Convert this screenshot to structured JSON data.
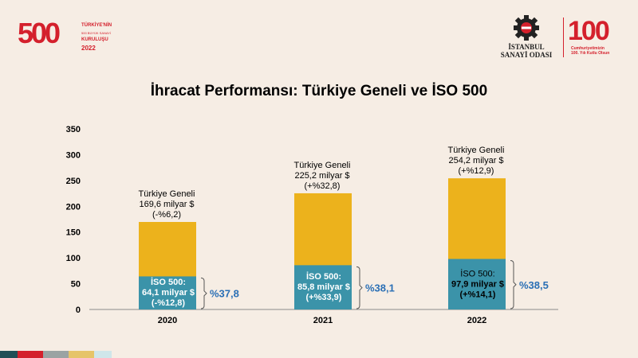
{
  "header": {
    "left_logo": {
      "number": "500",
      "line1": "TÜRKİYE'NİN",
      "line2": "500 BÜYÜK SANAYİ",
      "line3": "KURULUŞU",
      "year": "2022"
    },
    "right_logo": {
      "iso_line1": "İSTANBUL",
      "iso_line2": "SANAYİ ODASI",
      "hundred": "100",
      "cum_line1": "Cumhuriyetimizin",
      "cum_line2": "100. Yılı Kutlu Olsun"
    }
  },
  "colors": {
    "total": "#ecb21c",
    "iso": "#3b93a9",
    "share_text": "#2a6fb5",
    "accent_red": "#d4202c"
  },
  "footer_colors": [
    "#1f4e56",
    "#d4202c",
    "#9aa3a3",
    "#e6c469",
    "#cfe6ea"
  ],
  "chart_data": {
    "type": "bar",
    "title": "İhracat Performansı: Türkiye Geneli ve İSO 500",
    "categories": [
      "2020",
      "2021",
      "2022"
    ],
    "ylim": [
      0,
      350
    ],
    "yticks": [
      0,
      50,
      100,
      150,
      200,
      250,
      300,
      350
    ],
    "series": [
      {
        "name": "Türkiye Geneli",
        "values": [
          169.6,
          225.2,
          254.2
        ]
      },
      {
        "name": "İSO 500",
        "values": [
          64.1,
          85.8,
          97.9
        ]
      }
    ],
    "total_labels": [
      {
        "name": "Türkiye Geneli",
        "value": "169,6 milyar $",
        "change": "(-%6,2)"
      },
      {
        "name": "Türkiye Geneli",
        "value": "225,2 milyar $",
        "change": "(+%32,8)"
      },
      {
        "name": "Türkiye Geneli",
        "value": "254,2 milyar $",
        "change": "(+%12,9)"
      }
    ],
    "iso_labels": [
      {
        "name": "İSO 500:",
        "value": "64,1 milyar $",
        "change": "(-%12,8)"
      },
      {
        "name": "İSO 500:",
        "value": "85,8 milyar $",
        "change": "(+%33,9)"
      },
      {
        "name": "İSO 500:",
        "value": "97,9 milyar $",
        "change": "(+%14,1)"
      }
    ],
    "shares": [
      "%37,8",
      "%38,1",
      "%38,5"
    ]
  }
}
